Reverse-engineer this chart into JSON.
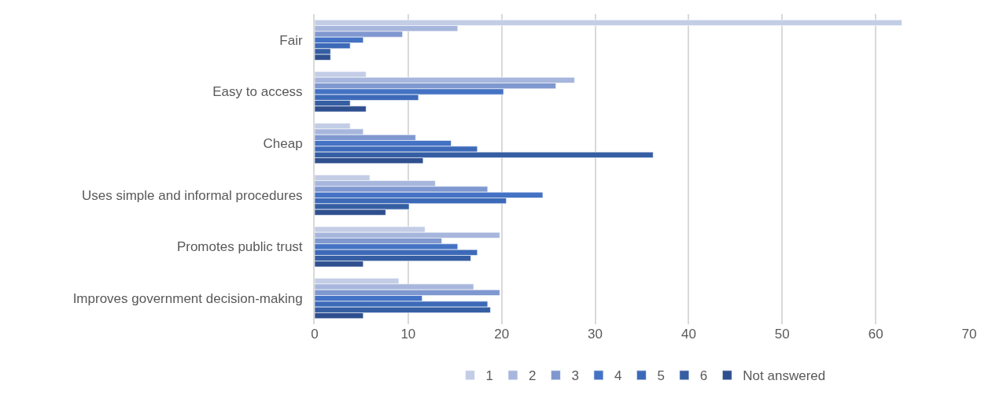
{
  "chart_data": {
    "type": "bar",
    "orientation": "horizontal",
    "categories": [
      "Fair",
      "Easy to access",
      "Cheap",
      "Uses simple and informal procedures",
      "Promotes public trust",
      "Improves government decision-making"
    ],
    "series": [
      {
        "name": "1",
        "color": "#c3cde6",
        "values": [
          62.8,
          5.5,
          3.8,
          5.9,
          11.8,
          9.0
        ]
      },
      {
        "name": "2",
        "color": "#a7b6dc",
        "values": [
          15.3,
          27.8,
          5.2,
          12.9,
          19.8,
          17.0
        ]
      },
      {
        "name": "3",
        "color": "#8098d0",
        "values": [
          9.4,
          25.8,
          10.8,
          18.5,
          13.6,
          19.8
        ]
      },
      {
        "name": "4",
        "color": "#4472c4",
        "values": [
          5.2,
          20.2,
          14.6,
          24.4,
          15.3,
          11.5
        ]
      },
      {
        "name": "5",
        "color": "#3d6ab8",
        "values": [
          3.8,
          11.1,
          17.4,
          20.5,
          17.4,
          18.5
        ]
      },
      {
        "name": "6",
        "color": "#355ea3",
        "values": [
          1.7,
          3.8,
          36.2,
          10.1,
          16.7,
          18.8
        ]
      },
      {
        "name": "Not answered",
        "color": "#2f4f8f",
        "values": [
          1.7,
          5.5,
          11.6,
          7.6,
          5.2,
          5.2
        ]
      }
    ],
    "xlim": [
      0,
      70
    ],
    "xticks": [
      0,
      10,
      20,
      30,
      40,
      50,
      60,
      70
    ],
    "grid": "x",
    "legend": "bottom"
  }
}
